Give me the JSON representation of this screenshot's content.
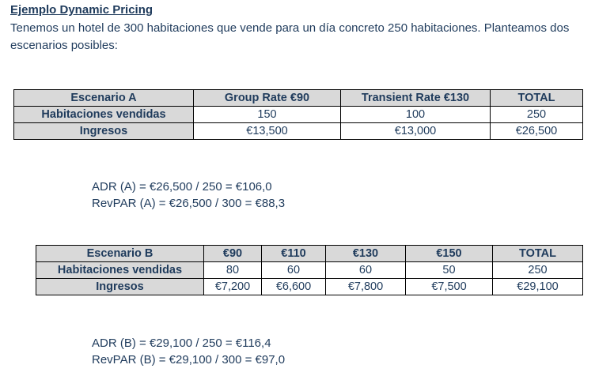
{
  "title": "Ejemplo Dynamic Pricing",
  "intro": "Tenemos un hotel de 300 habitaciones que vende para un día concreto 250 habitaciones. Planteamos dos escenarios posibles:",
  "scenario_a": {
    "headers": [
      "Escenario A",
      "Group Rate €90",
      "Transient Rate €130",
      "TOTAL"
    ],
    "rows": [
      [
        "Habitaciones vendidas",
        "150",
        "100",
        "250"
      ],
      [
        "Ingresos",
        "€13,500",
        "€13,000",
        "€26,500"
      ]
    ],
    "adr": "ADR (A) = €26,500 / 250 = €106,0",
    "revpar": "RevPAR (A) = €26,500 / 300 = €88,3"
  },
  "scenario_b": {
    "headers": [
      "Escenario B",
      "€90",
      "€110",
      "€130",
      "€150",
      "TOTAL"
    ],
    "rows": [
      [
        "Habitaciones vendidas",
        "80",
        "60",
        "60",
        "50",
        "250"
      ],
      [
        "Ingresos",
        "€7,200",
        "€6,600",
        "€7,800",
        "€7,500",
        "€29,100"
      ]
    ],
    "adr": "ADR (B) = €29,100 / 250 = €116,4",
    "revpar": "RevPAR (B) = €29,100 / 300 = €97,0"
  }
}
